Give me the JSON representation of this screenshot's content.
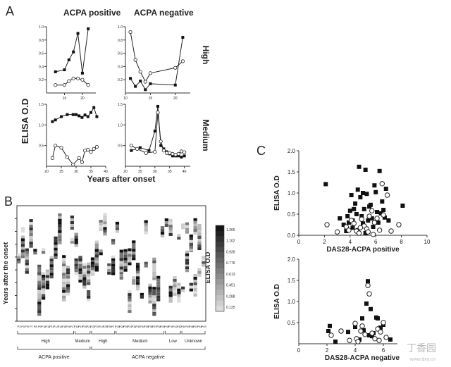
{
  "panelA": {
    "letter": "A",
    "ylabel": "ELISA O.D",
    "xlabel": "Years after onset",
    "col_titles": [
      "ACPA positive",
      "ACPA negative"
    ],
    "row_labels": [
      "High",
      "Medium"
    ],
    "subplots": [
      {
        "key": "tl",
        "xlim": [
          12,
          23
        ],
        "ylim": [
          0,
          1
        ],
        "xticks": [
          16,
          20
        ],
        "yticks": [
          0.2,
          0.4,
          0.6,
          0.8,
          1.0
        ],
        "series": [
          {
            "style": "filled",
            "x": [
              14,
              16,
              17,
              18,
              19,
              20,
              21.3
            ],
            "y": [
              0.32,
              0.35,
              0.5,
              0.62,
              0.9,
              0.3,
              0.97
            ]
          },
          {
            "style": "open",
            "x": [
              14,
              16,
              17,
              18,
              19,
              20,
              21.3
            ],
            "y": [
              0.12,
              0.12,
              0.18,
              0.22,
              0.22,
              0.2,
              0.12
            ]
          }
        ]
      },
      {
        "key": "tr",
        "xlim": [
          10,
          23
        ],
        "ylim": [
          0,
          1
        ],
        "xticks": [
          10,
          15,
          20
        ],
        "yticks": [
          0.2,
          0.4,
          0.6,
          0.8,
          1.0
        ],
        "series": [
          {
            "style": "filled",
            "x": [
              11,
              12,
              13,
              14,
              15,
              20,
              21.5
            ],
            "y": [
              0.22,
              0.1,
              0.18,
              0.05,
              0.14,
              0.12,
              0.84
            ]
          },
          {
            "style": "open",
            "x": [
              11,
              12,
              13,
              14,
              15,
              20,
              21.5
            ],
            "y": [
              0.92,
              0.5,
              0.32,
              0.17,
              0.3,
              0.38,
              0.48
            ]
          }
        ]
      },
      {
        "key": "ml",
        "xlim": [
          20,
          40
        ],
        "ylim": [
          0,
          1.5
        ],
        "xticks": [
          20,
          25,
          30,
          35,
          40
        ],
        "yticks": [
          0.5,
          1.0,
          1.5
        ],
        "ytick_labels": [
          "0.5",
          "1.0",
          "1.5"
        ],
        "series": [
          {
            "style": "filled",
            "x": [
              22,
              23,
              25,
              27,
              29,
              30,
              31,
              32,
              33,
              34,
              35,
              36,
              37
            ],
            "y": [
              1.08,
              1.12,
              1.2,
              1.25,
              1.25,
              1.25,
              1.22,
              1.18,
              1.24,
              1.2,
              1.3,
              1.42,
              1.2
            ]
          },
          {
            "style": "open",
            "x": [
              22,
              23,
              25,
              27,
              29,
              31,
              32,
              33,
              34,
              35,
              36,
              37
            ],
            "y": [
              0.2,
              0.5,
              0.45,
              0.22,
              0.04,
              0.2,
              0.1,
              0.38,
              0.4,
              0.35,
              0.42,
              0.47
            ]
          }
        ]
      },
      {
        "key": "mr",
        "xlim": [
          20,
          42
        ],
        "ylim": [
          0,
          1.5
        ],
        "xticks": [
          20,
          25,
          30,
          35,
          40
        ],
        "yticks": [
          0.5,
          1.0,
          1.5
        ],
        "ytick_labels": [
          "0.5",
          "1.0",
          "1.5"
        ],
        "series": [
          {
            "style": "filled",
            "x": [
              22,
              25,
              28,
              30,
              31,
              32,
              33,
              34,
              35,
              36,
              37,
              38,
              39,
              40
            ],
            "y": [
              0.38,
              0.45,
              0.38,
              0.85,
              1.45,
              0.5,
              0.42,
              0.35,
              0.3,
              0.25,
              0.25,
              0.25,
              0.22,
              0.25
            ]
          },
          {
            "style": "open",
            "x": [
              22,
              24,
              27,
              30,
              31,
              32,
              33,
              34,
              35,
              36,
              37,
              38,
              39,
              40
            ],
            "y": [
              0.5,
              0.42,
              0.32,
              0.35,
              1.3,
              0.6,
              0.38,
              0.32,
              0.32,
              0.3,
              0.28,
              0.3,
              0.36,
              0.34
            ]
          }
        ]
      }
    ]
  },
  "panelB": {
    "letter": "B",
    "ylabel": "Years after the onset",
    "colorbar_label": "ELISA O.D",
    "colorbar_ticks": [
      "1.265",
      "1.102",
      "0.939",
      "0.776",
      "0.613",
      "0.451",
      "0.288",
      "0.125"
    ],
    "patients": [
      "P3",
      "P5",
      "P6",
      "P7",
      "P8",
      "P9",
      "P10",
      "P11",
      "P12",
      "P13",
      "P14",
      "P15",
      "P16",
      "P17",
      "P18",
      "P19",
      "P20",
      "P21",
      "P22",
      "P23",
      "P24",
      "P25",
      "P26",
      "P27",
      "P28",
      "P29",
      "P30",
      "P31",
      "P32",
      "P33",
      "P34",
      "P35",
      "P36",
      "P37",
      "P38",
      "P39",
      "P40",
      "P41",
      "P42",
      "P43",
      "P44",
      "P45",
      "P46",
      "P47",
      "P48",
      "P49"
    ],
    "groups": [
      "High",
      "Medium",
      "High",
      "Medium",
      "Low",
      "Unknown"
    ],
    "supergroups": [
      "ACPA positive",
      "ACPA negative"
    ]
  },
  "panelC": {
    "letter": "C",
    "chart_data": [
      {
        "type": "scatter",
        "xlabel": "DAS28-ACPA positive",
        "ylabel": "ELISA O.D",
        "xlim": [
          0,
          10
        ],
        "ylim": [
          0,
          2.0
        ],
        "xticks": [
          0,
          2,
          4,
          6,
          8,
          10
        ],
        "yticks": [
          0.0,
          0.5,
          1.0,
          1.5,
          2.0
        ],
        "xtick_labels": [
          "0",
          "2",
          "4",
          "6",
          "8",
          "10"
        ],
        "ytick_labels": [
          "0.0",
          "0.5",
          "1.0",
          "1.5",
          "2.0"
        ],
        "series": [
          {
            "style": "filled",
            "x": [
              2.1,
              3.2,
              3.5,
              3.8,
              3.9,
              4.0,
              4.1,
              4.2,
              4.3,
              4.4,
              4.5,
              4.6,
              4.7,
              4.8,
              4.9,
              5.0,
              5.0,
              5.1,
              5.2,
              5.3,
              5.4,
              5.5,
              5.6,
              5.7,
              5.8,
              6.0,
              6.1,
              6.2,
              6.3,
              6.5,
              6.6,
              6.8,
              7.0,
              8.1,
              4.6,
              5.2,
              3.7,
              6.4,
              4.2,
              5.9,
              6.7
            ],
            "y": [
              1.21,
              0.4,
              0.25,
              0.45,
              0.3,
              0.58,
              0.95,
              0.35,
              0.62,
              0.75,
              0.5,
              1.08,
              1.62,
              0.9,
              0.45,
              1.0,
              0.28,
              0.62,
              1.55,
              0.98,
              0.35,
              0.68,
              0.72,
              0.4,
              0.2,
              1.02,
              0.55,
              0.3,
              1.52,
              0.8,
              0.6,
              1.1,
              0.35,
              0.7,
              0.12,
              0.05,
              0.1,
              0.52,
              0.18,
              1.18,
              0.42
            ]
          },
          {
            "style": "open",
            "x": [
              2.2,
              3.0,
              3.7,
              3.9,
              4.1,
              4.3,
              4.5,
              4.7,
              4.9,
              5.1,
              5.3,
              5.5,
              5.7,
              5.9,
              6.1,
              6.3,
              6.5,
              6.9,
              7.2,
              7.8,
              5.4,
              4.8,
              6.6,
              5.8
            ],
            "y": [
              0.25,
              0.08,
              0.2,
              0.12,
              0.35,
              0.28,
              0.1,
              0.05,
              0.38,
              0.22,
              0.15,
              0.45,
              0.58,
              0.3,
              0.4,
              0.12,
              1.22,
              0.95,
              0.1,
              0.25,
              0.08,
              0.18,
              0.48,
              0.02
            ]
          }
        ]
      },
      {
        "type": "scatter",
        "xlabel": "DAS28-ACPA negative",
        "ylabel": "ELISA O.D",
        "xlim": [
          0,
          7
        ],
        "ylim": [
          0,
          2.0
        ],
        "xticks": [
          0,
          2,
          4,
          6
        ],
        "yticks": [
          0.5,
          1.0,
          1.5,
          2.0
        ],
        "xtick_labels": [
          "0",
          "2",
          "4",
          "6"
        ],
        "ytick_labels": [
          "0.5",
          "1.0",
          "1.5",
          "2.0"
        ],
        "series": [
          {
            "style": "filled",
            "x": [
              2.1,
              2.2,
              2.6,
              3.0,
              3.5,
              4.0,
              4.3,
              4.5,
              4.6,
              4.8,
              4.9,
              5.0,
              5.1,
              5.2,
              5.3,
              5.5,
              5.6,
              5.8,
              6.0,
              6.5
            ],
            "y": [
              0.3,
              0.42,
              0.05,
              0.3,
              0.28,
              0.4,
              0.1,
              0.6,
              0.32,
              0.95,
              1.48,
              0.2,
              0.82,
              0.18,
              0.25,
              0.62,
              0.6,
              0.38,
              0.45,
              0.1
            ]
          },
          {
            "style": "open",
            "x": [
              2.3,
              3.0,
              3.6,
              4.0,
              4.1,
              4.4,
              4.5,
              4.7,
              4.9,
              5.0,
              5.2,
              5.4,
              5.6,
              5.8,
              6.0,
              6.2,
              4.2,
              5.7
            ],
            "y": [
              0.2,
              0.3,
              0.08,
              0.48,
              0.12,
              0.3,
              0.42,
              0.22,
              1.38,
              1.18,
              0.25,
              0.12,
              0.35,
              0.28,
              0.5,
              0.15,
              0.05,
              0.08
            ]
          }
        ]
      }
    ]
  },
  "watermark": {
    "cjk": "丁香园",
    "url": "www.dxy.cn"
  }
}
